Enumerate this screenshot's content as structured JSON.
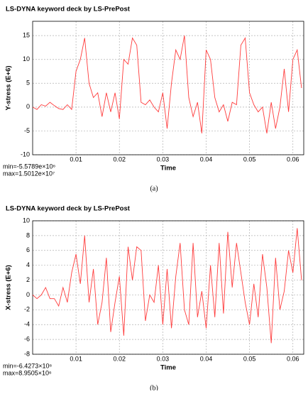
{
  "chart_data": [
    {
      "type": "line",
      "title": "LS-DYNA keyword deck by LS-PrePost",
      "ylabel": "Y-stress (E+6)",
      "xlabel": "Time",
      "annotations": [
        "min=-5.5789e×10⁶",
        "max=1.5012e×10⁷"
      ],
      "caption": "(a)",
      "color": "#ff3b3b",
      "grid": true,
      "xlim": [
        0,
        0.0625
      ],
      "xticks": [
        0.01,
        0.02,
        0.03,
        0.04,
        0.05,
        0.06
      ],
      "ylim": [
        -10,
        18
      ],
      "yticks": [
        -10,
        -5,
        0,
        5,
        10,
        15
      ],
      "x": [
        0,
        0.001,
        0.002,
        0.003,
        0.004,
        0.005,
        0.006,
        0.007,
        0.008,
        0.009,
        0.01,
        0.011,
        0.012,
        0.013,
        0.014,
        0.015,
        0.016,
        0.017,
        0.018,
        0.019,
        0.02,
        0.021,
        0.022,
        0.023,
        0.024,
        0.025,
        0.026,
        0.027,
        0.028,
        0.029,
        0.03,
        0.031,
        0.032,
        0.033,
        0.034,
        0.035,
        0.036,
        0.037,
        0.038,
        0.039,
        0.04,
        0.041,
        0.042,
        0.043,
        0.044,
        0.045,
        0.046,
        0.047,
        0.048,
        0.049,
        0.05,
        0.051,
        0.052,
        0.053,
        0.054,
        0.055,
        0.056,
        0.057,
        0.058,
        0.059,
        0.06,
        0.061,
        0.062
      ],
      "values": [
        0,
        -0.5,
        0.5,
        0.2,
        1,
        0.3,
        -0.3,
        -0.5,
        0.5,
        -0.5,
        7.5,
        10,
        14.5,
        5,
        2,
        3,
        -2,
        3,
        -1,
        3,
        -2.5,
        10,
        9,
        14.5,
        13,
        1,
        0.5,
        1.5,
        0,
        -1,
        3,
        -4.5,
        5,
        12,
        10,
        15,
        2,
        -2,
        1,
        -5.5,
        12,
        10,
        2,
        -1,
        0.5,
        -3,
        1,
        0.5,
        13,
        14.5,
        3,
        0.5,
        -1,
        0,
        -5.5,
        1,
        -4.5,
        0,
        8,
        -1,
        10,
        12,
        4
      ]
    },
    {
      "type": "line",
      "title": "LS-DYNA keyword deck by LS-PrePost",
      "ylabel": "X-stress (E+6)",
      "xlabel": "Time",
      "annotations": [
        "min=-6.4273×10⁶",
        "max=8.9505×10⁶"
      ],
      "caption": "(b)",
      "color": "#ff3b3b",
      "grid": true,
      "xlim": [
        0,
        0.0625
      ],
      "xticks": [
        0.01,
        0.02,
        0.03,
        0.04,
        0.05,
        0.06
      ],
      "ylim": [
        -8,
        10
      ],
      "yticks": [
        -8,
        -6,
        -4,
        -2,
        0,
        2,
        4,
        6,
        8,
        10
      ],
      "x": [
        0,
        0.001,
        0.002,
        0.003,
        0.004,
        0.005,
        0.006,
        0.007,
        0.008,
        0.009,
        0.01,
        0.011,
        0.012,
        0.013,
        0.014,
        0.015,
        0.016,
        0.017,
        0.018,
        0.019,
        0.02,
        0.021,
        0.022,
        0.023,
        0.024,
        0.025,
        0.026,
        0.027,
        0.028,
        0.029,
        0.03,
        0.031,
        0.032,
        0.033,
        0.034,
        0.035,
        0.036,
        0.037,
        0.038,
        0.039,
        0.04,
        0.041,
        0.042,
        0.043,
        0.044,
        0.045,
        0.046,
        0.047,
        0.048,
        0.049,
        0.05,
        0.051,
        0.052,
        0.053,
        0.054,
        0.055,
        0.056,
        0.057,
        0.058,
        0.059,
        0.06,
        0.061,
        0.062
      ],
      "values": [
        0,
        -0.5,
        0,
        1,
        -0.5,
        -0.5,
        -1.5,
        1,
        -1,
        3,
        5.5,
        1.5,
        8,
        -1,
        3.5,
        -4,
        -1,
        5,
        -5,
        -1,
        2.5,
        -5.5,
        6.5,
        2,
        6.5,
        6,
        -3.5,
        0,
        -1,
        4,
        -4,
        3.5,
        -4.5,
        2.5,
        7,
        -2,
        -4,
        7,
        -3,
        0.5,
        -4.5,
        4,
        -3,
        7,
        -2.5,
        8.5,
        1,
        7,
        3,
        -1,
        -4,
        1.5,
        -3,
        5.5,
        1,
        -6.5,
        5,
        -2,
        0.5,
        6,
        3,
        9,
        2
      ]
    }
  ]
}
